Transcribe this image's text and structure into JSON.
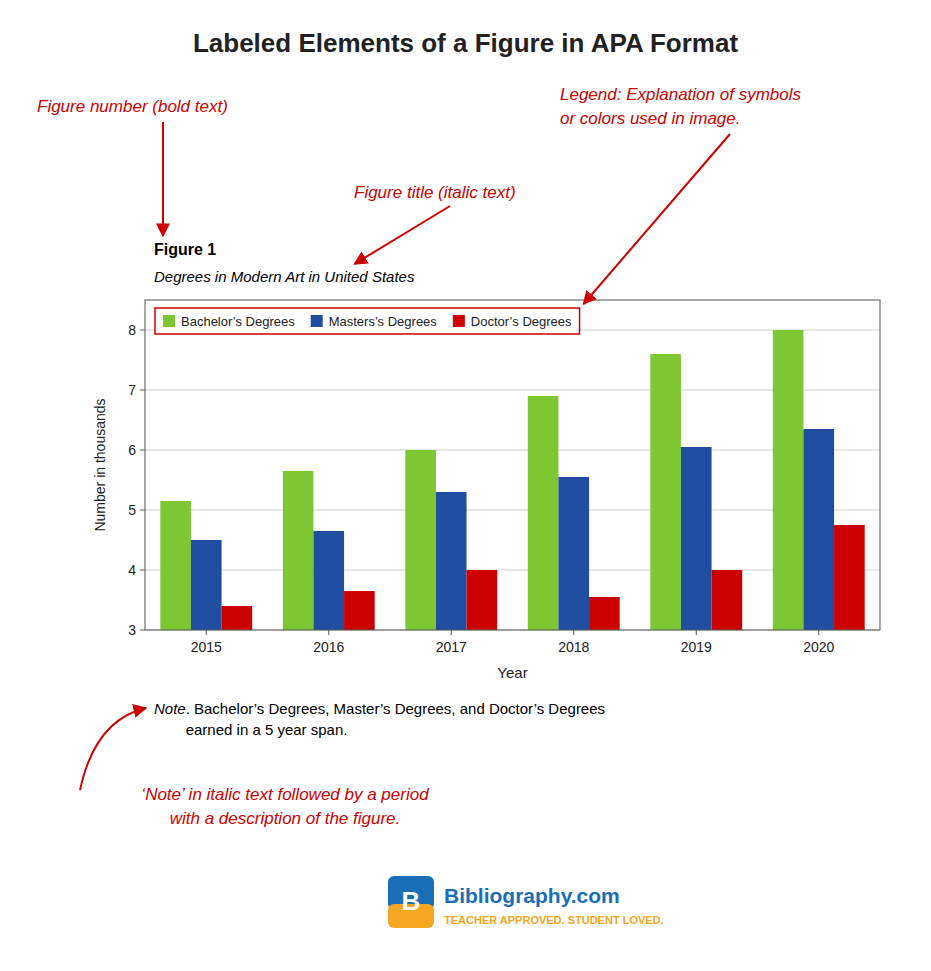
{
  "chart_data": {
    "type": "bar",
    "title": "Labeled Elements of a Figure in APA Format",
    "figure_number": "Figure 1",
    "figure_title": "Degrees in Modern Art in United States",
    "categories": [
      "2015",
      "2016",
      "2017",
      "2018",
      "2019",
      "2020"
    ],
    "series": [
      {
        "name": "Bachelor’s Degrees",
        "color": "#7dc832",
        "values": [
          5.15,
          5.65,
          6.0,
          6.9,
          7.6,
          8.0
        ]
      },
      {
        "name": "Masters’s Degrees",
        "color": "#1f4ea1",
        "values": [
          4.5,
          4.65,
          5.3,
          5.55,
          6.05,
          6.35
        ]
      },
      {
        "name": "Doctor’s Degrees",
        "color": "#cc0000",
        "values": [
          3.4,
          3.65,
          4.0,
          3.55,
          4.0,
          4.75
        ]
      }
    ],
    "xlabel": "Year",
    "ylabel": "Number in thousands",
    "ylim": [
      3.0,
      8.5
    ],
    "yticks": [
      3,
      4,
      5,
      6,
      7,
      8
    ],
    "grid": true,
    "legend": "upper left",
    "note_italic": "Note",
    "note_rest": ". Bachelor’s Degrees, Master’s Degrees, and Doctor’s Degrees\nearned in a 5 year span.",
    "annotations": [
      {
        "text": "Figure number (bold text)",
        "color": "#cc0000"
      },
      {
        "text": "Legend: Explanation of symbols",
        "color": "#cc0000"
      },
      {
        "text": "or colors used in image.",
        "color": "#cc0000"
      },
      {
        "text": "Figure title (italic text)",
        "color": "#cc0000"
      },
      {
        "text": "‘Note’ in italic text followed by a period",
        "color": "#cc0000"
      },
      {
        "text": "with a description of the figure.",
        "color": "#cc0000"
      }
    ],
    "footer": {
      "logo": "B",
      "text": "Bibliography.com",
      "tagline": "TEACHER APPROVED. STUDENT LOVED.",
      "colors": [
        "#1a6eb5",
        "#f5a623"
      ]
    }
  }
}
